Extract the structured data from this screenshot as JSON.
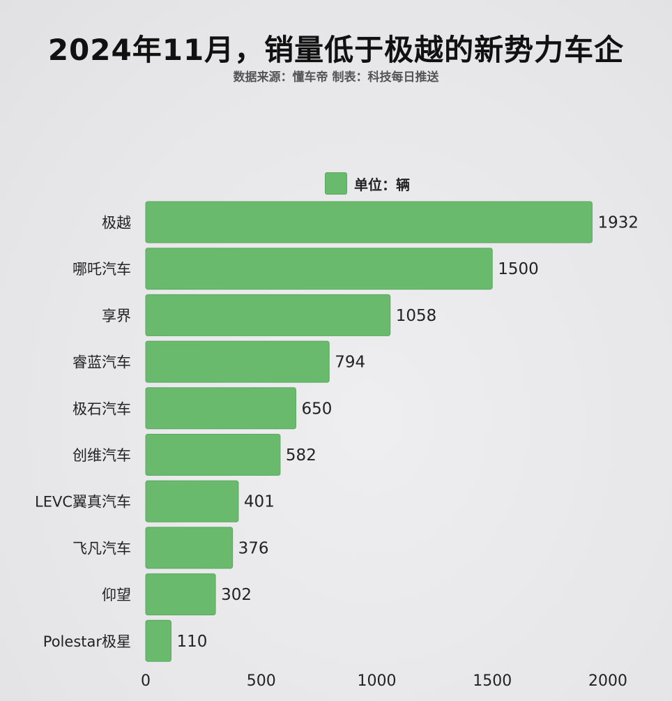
{
  "chart_data": {
    "type": "bar",
    "orientation": "horizontal",
    "title": "2024年11月，销量低于极越的新势力车企",
    "subtitle": "数据来源：懂车帝 制表：科技每日推送",
    "legend": {
      "label": "单位：辆",
      "placement": "top-center"
    },
    "categories": [
      "极越",
      "哪吒汽车",
      "享界",
      "睿蓝汽车",
      "极石汽车",
      "创维汽车",
      "LEVC翼真汽车",
      "飞凡汽车",
      "仰望",
      "Polestar极星"
    ],
    "values": [
      1932,
      1500,
      1058,
      794,
      650,
      582,
      401,
      376,
      302,
      110
    ],
    "xlim": [
      0,
      2000
    ],
    "xticks": [
      0,
      500,
      1000,
      1500,
      2000
    ],
    "grid": false,
    "bar_color": "#69ba6d",
    "bar_border_color": "#5aa85f"
  }
}
